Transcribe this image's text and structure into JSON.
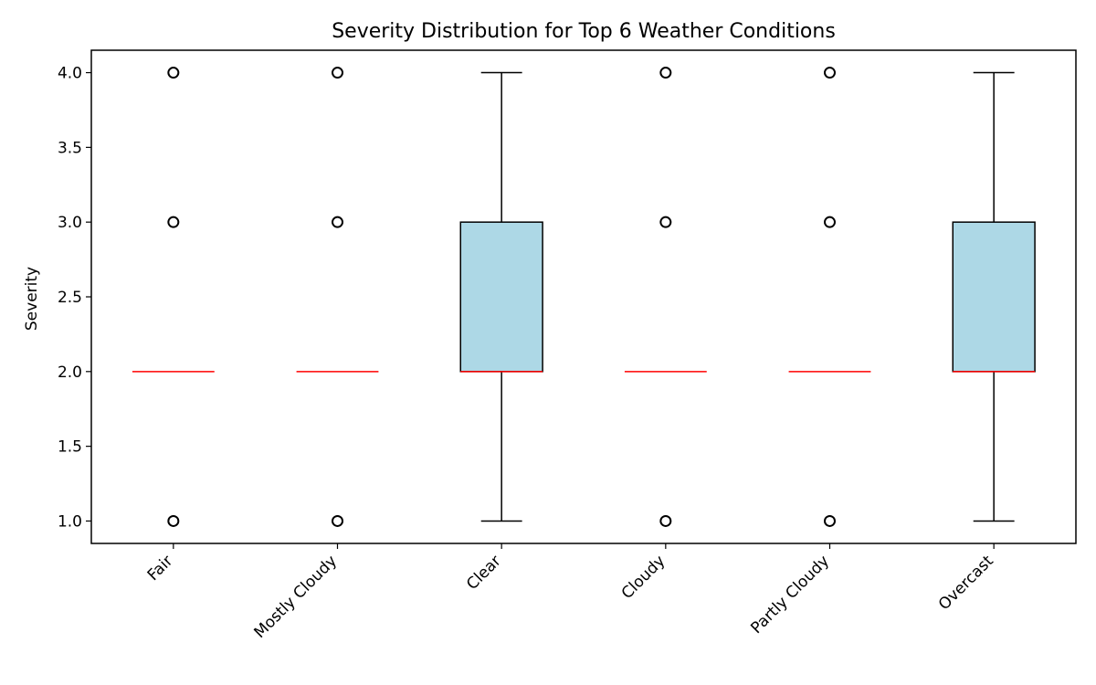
{
  "chart_data": {
    "type": "box",
    "title": "Severity Distribution for Top 6 Weather Conditions",
    "xlabel": "",
    "ylabel": "Severity",
    "ylim": [
      0.85,
      4.15
    ],
    "yticks": [
      1.0,
      1.5,
      2.0,
      2.5,
      3.0,
      3.5,
      4.0
    ],
    "ytick_labels": [
      "1.0",
      "1.5",
      "2.0",
      "2.5",
      "3.0",
      "3.5",
      "4.0"
    ],
    "grid": false,
    "colors": {
      "box_fill": "#add8e6",
      "median": "#ff0000",
      "line": "#000000"
    },
    "categories": [
      "Fair",
      "Mostly Cloudy",
      "Clear",
      "Cloudy",
      "Partly Cloudy",
      "Overcast"
    ],
    "boxes": [
      {
        "q1": 2,
        "median": 2,
        "q3": 2,
        "whisker_low": 2,
        "whisker_high": 2,
        "outliers": [
          1,
          3,
          4
        ]
      },
      {
        "q1": 2,
        "median": 2,
        "q3": 2,
        "whisker_low": 2,
        "whisker_high": 2,
        "outliers": [
          1,
          3,
          4
        ]
      },
      {
        "q1": 2,
        "median": 2,
        "q3": 3,
        "whisker_low": 1,
        "whisker_high": 4,
        "outliers": []
      },
      {
        "q1": 2,
        "median": 2,
        "q3": 2,
        "whisker_low": 2,
        "whisker_high": 2,
        "outliers": [
          1,
          3,
          4
        ]
      },
      {
        "q1": 2,
        "median": 2,
        "q3": 2,
        "whisker_low": 2,
        "whisker_high": 2,
        "outliers": [
          1,
          3,
          4
        ]
      },
      {
        "q1": 2,
        "median": 2,
        "q3": 3,
        "whisker_low": 1,
        "whisker_high": 4,
        "outliers": []
      }
    ]
  }
}
